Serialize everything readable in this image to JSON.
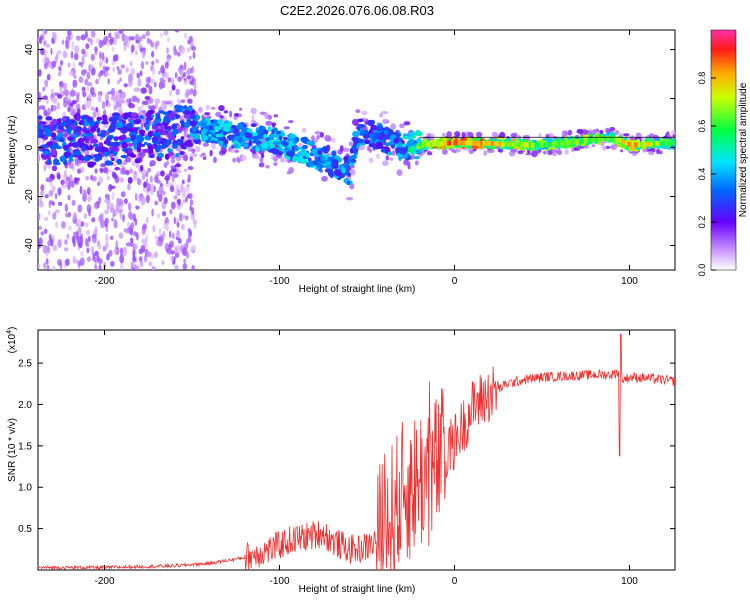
{
  "figure_title": "C2E2.2026.076.06.08.R03",
  "chart_data": [
    {
      "type": "heatmap",
      "title": "C2E2.2026.076.06.08.R03",
      "xlabel": "Height of straight line (km)",
      "ylabel": "Frequency (Hz)",
      "xlim": [
        -238,
        126
      ],
      "ylim": [
        -50,
        48
      ],
      "x_ticks": [
        -200,
        -100,
        0,
        100
      ],
      "x_tick_labels": [
        "-200",
        "-100",
        "0",
        "100"
      ],
      "y_ticks": [
        -40,
        -20,
        0,
        20,
        40
      ],
      "y_tick_labels": [
        "-40",
        "-20",
        "0",
        "20",
        "40"
      ],
      "colorbar": {
        "label": "Normalized spectral amplitude",
        "range": [
          0,
          1
        ],
        "ticks": [
          0.0,
          0.2,
          0.4,
          0.6,
          0.8
        ],
        "tick_labels": [
          "0.0",
          "0.2",
          "0.4",
          "0.6",
          "0.8"
        ]
      },
      "ridge": {
        "x": [
          -235,
          -200,
          -170,
          -150,
          -140,
          -120,
          -100,
          -80,
          -60,
          -55,
          -45,
          -30,
          -20,
          0,
          50,
          90,
          100,
          126
        ],
        "freq": [
          3,
          3,
          5,
          8,
          6,
          5,
          2,
          -3,
          -10,
          7,
          5,
          0,
          1,
          2,
          1,
          4,
          1,
          2
        ],
        "amplitude": [
          0.2,
          0.2,
          0.25,
          0.4,
          0.45,
          0.45,
          0.45,
          0.45,
          0.4,
          0.4,
          0.35,
          0.4,
          0.7,
          0.95,
          0.65,
          0.7,
          0.85,
          0.6
        ]
      },
      "scatter_noise_region": {
        "x_range": [
          -238,
          -148
        ],
        "freq_range": [
          -50,
          48
        ]
      }
    },
    {
      "type": "line",
      "xlabel": "Height of straight line (km)",
      "ylabel": "SNR (10 * v/v)",
      "y_multiplier_label": "(x10",
      "y_multiplier_exp": "4",
      "xlim": [
        -238,
        126
      ],
      "ylim": [
        0,
        2.9
      ],
      "x_ticks": [
        -200,
        -100,
        0,
        100
      ],
      "x_tick_labels": [
        "-200",
        "-100",
        "0",
        "100"
      ],
      "y_ticks": [
        0.5,
        1.0,
        1.5,
        2.0,
        2.5
      ],
      "y_tick_labels": [
        "0.5",
        "1.0",
        "1.5",
        "2.0",
        "2.5"
      ],
      "series": [
        {
          "name": "SNR",
          "color": "#ee3030",
          "x": [
            -238,
            -200,
            -160,
            -140,
            -120,
            -105,
            -95,
            -85,
            -75,
            -70,
            -65,
            -60,
            -55,
            -50,
            -45,
            -40,
            -35,
            -30,
            -25,
            -20,
            -15,
            -10,
            -5,
            0,
            5,
            10,
            15,
            20,
            25,
            30,
            40,
            50,
            60,
            70,
            80,
            90,
            94,
            96,
            100,
            110,
            126
          ],
          "y": [
            0.03,
            0.03,
            0.05,
            0.08,
            0.15,
            0.25,
            0.35,
            0.4,
            0.45,
            0.35,
            0.3,
            0.25,
            0.25,
            0.28,
            0.35,
            0.5,
            0.7,
            0.9,
            1.0,
            1.1,
            1.15,
            1.25,
            1.4,
            1.55,
            1.75,
            1.95,
            2.05,
            2.12,
            2.18,
            2.25,
            2.3,
            2.33,
            2.34,
            2.35,
            2.36,
            2.36,
            2.4,
            2.3,
            2.33,
            2.32,
            2.28
          ]
        }
      ],
      "annotations": [
        {
          "x": -15,
          "y": 2.55,
          "text": ""
        },
        {
          "x": 95,
          "y": 2.85,
          "text": ""
        },
        {
          "x": 94,
          "y": 1.38,
          "text": ""
        }
      ]
    }
  ]
}
